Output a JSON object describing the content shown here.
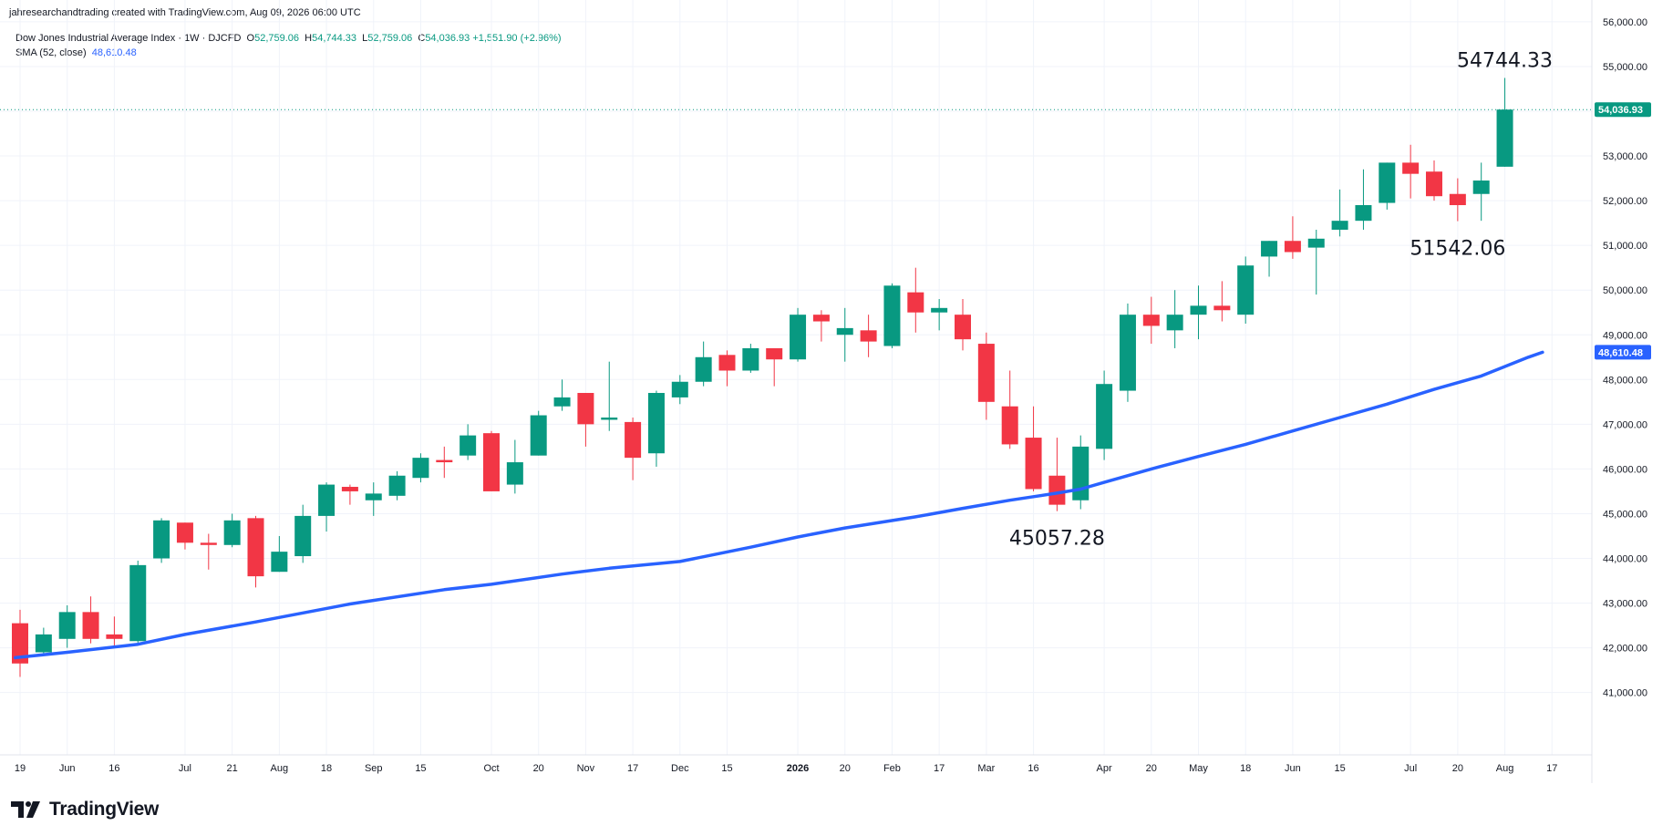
{
  "header": {
    "attribution": "jahresearchandtrading created with TradingView.com, Aug 09, 2026 06:00 UTC",
    "symbol_title": "Dow Jones Industrial Average Index · 1W · DJCFD",
    "ohlc": {
      "o_label": "O",
      "o": "52,759.06",
      "h_label": "H",
      "h": "54,744.33",
      "l_label": "L",
      "l": "52,759.06",
      "c_label": "C",
      "c": "54,036.93",
      "change": "+1,551.90 (+2.96%)"
    },
    "indicator_label": "SMA (52, close)",
    "indicator_value": "48,610.48"
  },
  "brand": {
    "name": "TradingView",
    "logo_icon": "tradingview-logo-icon"
  },
  "colors": {
    "up": "#089981",
    "down": "#f23645",
    "sma": "#2962ff",
    "grid": "#f0f3fa"
  },
  "chart_data": {
    "type": "candlestick",
    "title": "Dow Jones Industrial Average Index · 1W · DJCFD",
    "ylim": [
      40000,
      56500
    ],
    "y_ticks": [
      "56,000.00",
      "55,000.00",
      "54,000.00",
      "53,000.00",
      "52,000.00",
      "51,000.00",
      "50,000.00",
      "49,000.00",
      "48,000.00",
      "47,000.00",
      "46,000.00",
      "45,000.00",
      "44,000.00",
      "43,000.00",
      "42,000.00",
      "41,000.00"
    ],
    "y_tick_values": [
      56000,
      55000,
      54000,
      53000,
      52000,
      51000,
      50000,
      49000,
      48000,
      47000,
      46000,
      45000,
      44000,
      43000,
      42000,
      41000
    ],
    "x_ticks": [
      {
        "label": "19",
        "week": 0
      },
      {
        "label": "Jun",
        "week": 2
      },
      {
        "label": "16",
        "week": 4
      },
      {
        "label": "Jul",
        "week": 7
      },
      {
        "label": "21",
        "week": 9
      },
      {
        "label": "Aug",
        "week": 11
      },
      {
        "label": "18",
        "week": 13
      },
      {
        "label": "Sep",
        "week": 15
      },
      {
        "label": "15",
        "week": 17
      },
      {
        "label": "Oct",
        "week": 20
      },
      {
        "label": "20",
        "week": 22
      },
      {
        "label": "Nov",
        "week": 24
      },
      {
        "label": "17",
        "week": 26
      },
      {
        "label": "Dec",
        "week": 28
      },
      {
        "label": "15",
        "week": 30
      },
      {
        "label": "2026",
        "week": 33
      },
      {
        "label": "20",
        "week": 35
      },
      {
        "label": "Feb",
        "week": 37
      },
      {
        "label": "17",
        "week": 39
      },
      {
        "label": "Mar",
        "week": 41
      },
      {
        "label": "16",
        "week": 43
      },
      {
        "label": "Apr",
        "week": 46
      },
      {
        "label": "20",
        "week": 48
      },
      {
        "label": "May",
        "week": 50
      },
      {
        "label": "18",
        "week": 52
      },
      {
        "label": "Jun",
        "week": 54
      },
      {
        "label": "15",
        "week": 56
      },
      {
        "label": "Jul",
        "week": 59
      },
      {
        "label": "20",
        "week": 61
      },
      {
        "label": "Aug",
        "week": 63
      },
      {
        "label": "17",
        "week": 65
      }
    ],
    "candles": [
      {
        "o": 42550,
        "h": 42850,
        "l": 41350,
        "c": 41650
      },
      {
        "o": 41900,
        "h": 42450,
        "l": 41850,
        "c": 42300
      },
      {
        "o": 42200,
        "h": 42950,
        "l": 42000,
        "c": 42800
      },
      {
        "o": 42800,
        "h": 43150,
        "l": 42100,
        "c": 42200
      },
      {
        "o": 42300,
        "h": 42700,
        "l": 42050,
        "c": 42200
      },
      {
        "o": 42150,
        "h": 43950,
        "l": 42050,
        "c": 43850
      },
      {
        "o": 44000,
        "h": 44900,
        "l": 43900,
        "c": 44850
      },
      {
        "o": 44800,
        "h": 44800,
        "l": 44200,
        "c": 44350
      },
      {
        "o": 44350,
        "h": 44550,
        "l": 43750,
        "c": 44300
      },
      {
        "o": 44300,
        "h": 45000,
        "l": 44250,
        "c": 44850
      },
      {
        "o": 44900,
        "h": 44950,
        "l": 43350,
        "c": 43600
      },
      {
        "o": 43700,
        "h": 44500,
        "l": 43700,
        "c": 44150
      },
      {
        "o": 44050,
        "h": 45200,
        "l": 43900,
        "c": 44950
      },
      {
        "o": 44950,
        "h": 45700,
        "l": 44600,
        "c": 45650
      },
      {
        "o": 45600,
        "h": 45650,
        "l": 45200,
        "c": 45500
      },
      {
        "o": 45300,
        "h": 45700,
        "l": 44950,
        "c": 45450
      },
      {
        "o": 45400,
        "h": 45950,
        "l": 45300,
        "c": 45850
      },
      {
        "o": 45800,
        "h": 46350,
        "l": 45700,
        "c": 46250
      },
      {
        "o": 46200,
        "h": 46500,
        "l": 45800,
        "c": 46150
      },
      {
        "o": 46300,
        "h": 47000,
        "l": 46200,
        "c": 46750
      },
      {
        "o": 46800,
        "h": 46850,
        "l": 45500,
        "c": 45500
      },
      {
        "o": 45650,
        "h": 46650,
        "l": 45450,
        "c": 46150
      },
      {
        "o": 46300,
        "h": 47300,
        "l": 46300,
        "c": 47200
      },
      {
        "o": 47400,
        "h": 48000,
        "l": 47300,
        "c": 47600
      },
      {
        "o": 47700,
        "h": 47700,
        "l": 46500,
        "c": 47000
      },
      {
        "o": 47100,
        "h": 48400,
        "l": 46850,
        "c": 47150
      },
      {
        "o": 47050,
        "h": 47150,
        "l": 45750,
        "c": 46250
      },
      {
        "o": 46350,
        "h": 47750,
        "l": 46050,
        "c": 47700
      },
      {
        "o": 47600,
        "h": 48100,
        "l": 47450,
        "c": 47950
      },
      {
        "o": 47950,
        "h": 48850,
        "l": 47850,
        "c": 48500
      },
      {
        "o": 48550,
        "h": 48650,
        "l": 47850,
        "c": 48200
      },
      {
        "o": 48200,
        "h": 48800,
        "l": 48150,
        "c": 48700
      },
      {
        "o": 48700,
        "h": 48700,
        "l": 47850,
        "c": 48450
      },
      {
        "o": 48450,
        "h": 49600,
        "l": 48400,
        "c": 49450
      },
      {
        "o": 49450,
        "h": 49550,
        "l": 48850,
        "c": 49300
      },
      {
        "o": 49000,
        "h": 49600,
        "l": 48400,
        "c": 49150
      },
      {
        "o": 49100,
        "h": 49450,
        "l": 48500,
        "c": 48850
      },
      {
        "o": 48750,
        "h": 50150,
        "l": 48700,
        "c": 50100
      },
      {
        "o": 49950,
        "h": 50500,
        "l": 49050,
        "c": 49500
      },
      {
        "o": 49500,
        "h": 49800,
        "l": 49100,
        "c": 49600
      },
      {
        "o": 49450,
        "h": 49800,
        "l": 48650,
        "c": 48900
      },
      {
        "o": 48800,
        "h": 49050,
        "l": 47100,
        "c": 47500
      },
      {
        "o": 47400,
        "h": 48200,
        "l": 46450,
        "c": 46550
      },
      {
        "o": 46700,
        "h": 47400,
        "l": 45500,
        "c": 45550
      },
      {
        "o": 45850,
        "h": 46700,
        "l": 45057.28,
        "c": 45200
      },
      {
        "o": 45300,
        "h": 46750,
        "l": 45100,
        "c": 46500
      },
      {
        "o": 46450,
        "h": 48200,
        "l": 46200,
        "c": 47900
      },
      {
        "o": 47750,
        "h": 49700,
        "l": 47500,
        "c": 49450
      },
      {
        "o": 49450,
        "h": 49850,
        "l": 48800,
        "c": 49200
      },
      {
        "o": 49100,
        "h": 50000,
        "l": 48700,
        "c": 49450
      },
      {
        "o": 49450,
        "h": 50100,
        "l": 48900,
        "c": 49650
      },
      {
        "o": 49650,
        "h": 50200,
        "l": 49300,
        "c": 49550
      },
      {
        "o": 49450,
        "h": 50750,
        "l": 49250,
        "c": 50550
      },
      {
        "o": 50750,
        "h": 51100,
        "l": 50300,
        "c": 51100
      },
      {
        "o": 51100,
        "h": 51650,
        "l": 50700,
        "c": 50850
      },
      {
        "o": 50950,
        "h": 51350,
        "l": 49900,
        "c": 51150
      },
      {
        "o": 51350,
        "h": 52250,
        "l": 51200,
        "c": 51550
      },
      {
        "o": 51550,
        "h": 52700,
        "l": 51350,
        "c": 51900
      },
      {
        "o": 51950,
        "h": 52850,
        "l": 51800,
        "c": 52850
      },
      {
        "o": 52850,
        "h": 53250,
        "l": 52050,
        "c": 52600
      },
      {
        "o": 52650,
        "h": 52900,
        "l": 52000,
        "c": 52100
      },
      {
        "o": 52150,
        "h": 52500,
        "l": 51542.06,
        "c": 51900
      },
      {
        "o": 52150,
        "h": 52850,
        "l": 51550,
        "c": 52450
      },
      {
        "o": 52759.06,
        "h": 54744.33,
        "l": 52759.06,
        "c": 54036.93
      }
    ],
    "sma": {
      "name": "SMA (52, close)",
      "points": [
        [
          -0.2,
          41780
        ],
        [
          2,
          41900
        ],
        [
          5,
          42080
        ],
        [
          7,
          42300
        ],
        [
          10,
          42580
        ],
        [
          14,
          42980
        ],
        [
          18,
          43300
        ],
        [
          20,
          43420
        ],
        [
          23,
          43650
        ],
        [
          25,
          43780
        ],
        [
          28,
          43930
        ],
        [
          31,
          44250
        ],
        [
          33,
          44480
        ],
        [
          35,
          44680
        ],
        [
          38,
          44930
        ],
        [
          40,
          45120
        ],
        [
          42,
          45300
        ],
        [
          43,
          45380
        ],
        [
          44,
          45460
        ],
        [
          45,
          45550
        ],
        [
          46,
          45700
        ],
        [
          48,
          46000
        ],
        [
          50,
          46280
        ],
        [
          52,
          46550
        ],
        [
          54,
          46850
        ],
        [
          56,
          47150
        ],
        [
          58,
          47450
        ],
        [
          60,
          47780
        ],
        [
          62,
          48080
        ],
        [
          64,
          48500
        ],
        [
          64.6,
          48610.48
        ]
      ],
      "last_value": "48,610.48"
    },
    "price_line": {
      "value": 54036.93,
      "label": "54,036.93"
    },
    "annotations": [
      {
        "text": "54744.33",
        "week": 63,
        "value": 54744.33,
        "position": "above"
      },
      {
        "text": "51542.06",
        "week": 61,
        "value": 51542.06,
        "position": "below"
      },
      {
        "text": "45057.28",
        "week": 44,
        "value": 45057.28,
        "position": "below"
      }
    ]
  }
}
